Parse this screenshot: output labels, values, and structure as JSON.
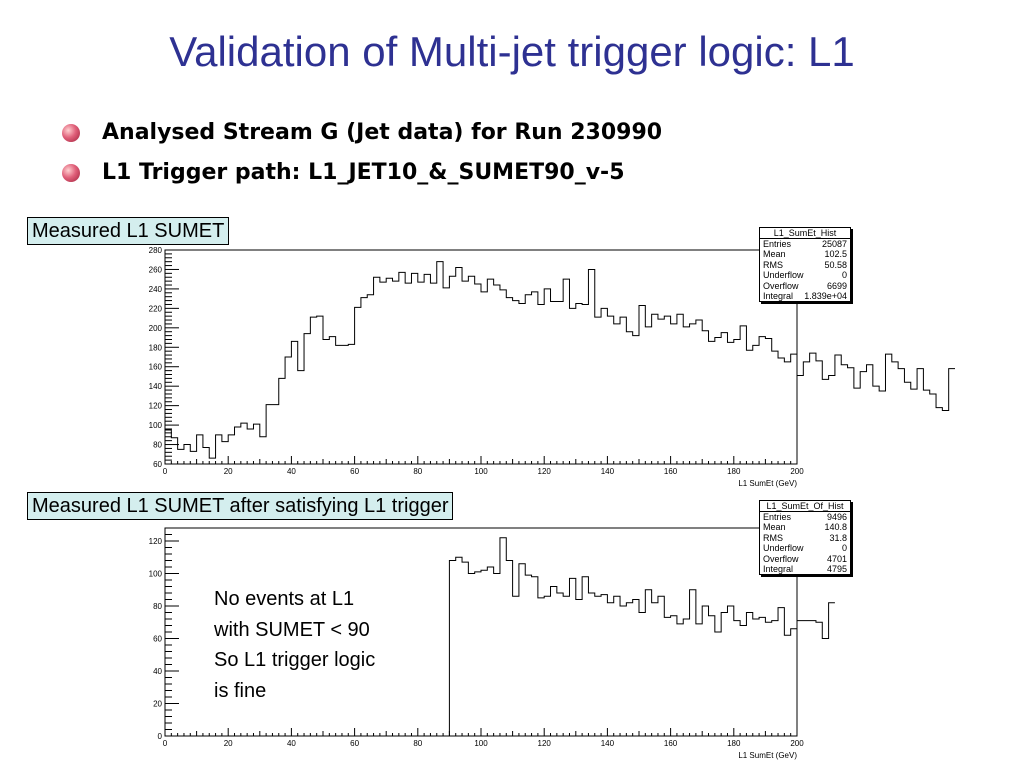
{
  "slide": {
    "title": "Validation of Multi-jet trigger logic: L1",
    "bullets": [
      "Analysed Stream G (Jet data) for Run 230990",
      "L1 Trigger path: L1_JET10_&_SUMET90_v-5"
    ],
    "label1": "Measured L1 SUMET",
    "label2": "Measured L1 SUMET after satisfying L1 trigger",
    "annotation": [
      "No events at L1",
      "with SUMET < 90",
      "So L1 trigger logic",
      "is fine"
    ]
  },
  "colors": {
    "title": "#2e3192",
    "label_bg": "#d4eeee",
    "line": "#000000"
  },
  "stats": [
    {
      "title": "L1_SumEt_Hist",
      "rows": [
        [
          "Entries",
          "25087"
        ],
        [
          "Mean",
          "102.5"
        ],
        [
          "RMS",
          "50.58"
        ],
        [
          "Underflow",
          "0"
        ],
        [
          "Overflow",
          "6699"
        ],
        [
          "Integral",
          "1.839e+04"
        ]
      ]
    },
    {
      "title": "L1_SumEt_Of_Hist",
      "rows": [
        [
          "Entries",
          "9496"
        ],
        [
          "Mean",
          "140.8"
        ],
        [
          "RMS",
          "31.8"
        ],
        [
          "Underflow",
          "0"
        ],
        [
          "Overflow",
          "4701"
        ],
        [
          "Integral",
          "4795"
        ]
      ]
    }
  ],
  "chart_data": [
    {
      "type": "histogram",
      "title": "L1_SumEt_Hist",
      "xlabel": "L1 SumEt (GeV)",
      "xlim": [
        0,
        200
      ],
      "ylim": [
        60,
        280
      ],
      "xticks": [
        0,
        20,
        40,
        60,
        80,
        100,
        120,
        140,
        160,
        180,
        200
      ],
      "yticks": [
        60,
        80,
        100,
        120,
        140,
        160,
        180,
        200,
        220,
        240,
        260,
        280
      ],
      "bin_width": 2,
      "values": [
        95,
        87,
        75,
        80,
        73,
        90,
        77,
        66,
        90,
        83,
        90,
        98,
        102,
        96,
        101,
        88,
        121,
        121,
        148,
        170,
        186,
        156,
        194,
        211,
        212,
        188,
        191,
        182,
        182,
        183,
        221,
        231,
        234,
        252,
        247,
        251,
        248,
        257,
        246,
        256,
        247,
        255,
        246,
        268,
        241,
        253,
        262,
        248,
        253,
        245,
        237,
        250,
        244,
        239,
        231,
        228,
        225,
        234,
        237,
        224,
        240,
        227,
        227,
        250,
        220,
        225,
        224,
        260,
        211,
        220,
        212,
        204,
        211,
        196,
        192,
        223,
        201,
        214,
        209,
        212,
        204,
        214,
        201,
        204,
        208,
        197,
        186,
        190,
        195,
        185,
        188,
        202,
        177,
        182,
        191,
        189,
        176,
        169,
        165,
        173,
        151,
        165,
        174,
        166,
        147,
        151,
        172,
        162,
        159,
        138,
        155,
        162,
        140,
        135,
        173,
        165,
        158,
        144,
        137,
        158,
        136,
        132,
        118,
        115,
        158
      ]
    },
    {
      "type": "histogram",
      "title": "L1_SumEt_Of_Hist",
      "xlabel": "L1 SumEt (GeV)",
      "xlim": [
        0,
        200
      ],
      "ylim": [
        0,
        128
      ],
      "xticks": [
        0,
        20,
        40,
        60,
        80,
        100,
        120,
        140,
        160,
        180,
        200
      ],
      "yticks": [
        0,
        20,
        40,
        60,
        80,
        100,
        120
      ],
      "bin_width": 2,
      "start": 90,
      "values": [
        108,
        110,
        107,
        100,
        101,
        102,
        104,
        100,
        122,
        108,
        86,
        106,
        99,
        98,
        85,
        86,
        92,
        88,
        86,
        97,
        84,
        98,
        88,
        86,
        87,
        82,
        86,
        80,
        82,
        84,
        76,
        90,
        82,
        86,
        73,
        74,
        69,
        72,
        90,
        69,
        80,
        74,
        64,
        76,
        80,
        71,
        68,
        76,
        72,
        73,
        70,
        71,
        79,
        62,
        66,
        71,
        71,
        71,
        70,
        60,
        82
      ]
    }
  ]
}
